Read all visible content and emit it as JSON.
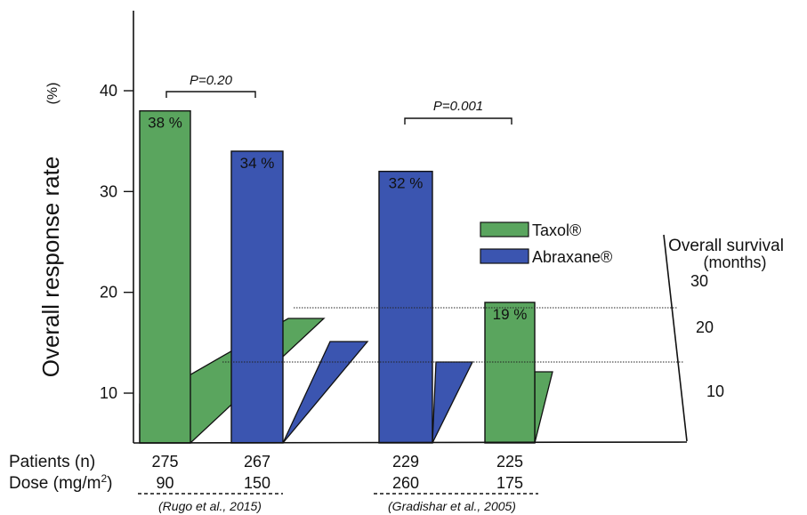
{
  "chart_data": {
    "type": "bar",
    "ylabel": "Overall  response  rate",
    "ylabel_unit": "(%)",
    "y_ticks": [
      "10",
      "20",
      "30",
      "40"
    ],
    "secondary_axis": {
      "label_line1": "Overall survival",
      "label_line2": "(months)",
      "ticks": [
        "10",
        "20",
        "30"
      ]
    },
    "legend": [
      {
        "name": "Taxol®",
        "color": "#5aa55e"
      },
      {
        "name": "Abraxane®",
        "color": "#3b55b0"
      }
    ],
    "series": [
      {
        "name": "Taxol®",
        "color": "#5aa55e"
      },
      {
        "name": "Abraxane®",
        "color": "#3b55b0"
      }
    ],
    "bars": [
      {
        "series": "Taxol®",
        "response_rate": 38,
        "label": "38 %",
        "patients": "275",
        "dose": "90",
        "survival_months": 13
      },
      {
        "series": "Abraxane®",
        "response_rate": 34,
        "label": "34 %",
        "patients": "267",
        "dose": "150",
        "survival_months": 16
      },
      {
        "series": "Abraxane®",
        "response_rate": 32,
        "label": "32 %",
        "patients": "229",
        "dose": "260",
        "survival_months": 14
      },
      {
        "series": "Taxol®",
        "response_rate": 19,
        "label": "19 %",
        "patients": "225",
        "dose": "175",
        "survival_months": 14
      }
    ],
    "comparisons": [
      {
        "label": "P=0.20",
        "reference": "(Rugo et al., 2015)"
      },
      {
        "label": "P=0.001",
        "reference": "(Gradishar et al., 2005)"
      }
    ],
    "row_labels": {
      "patients": "Patients (n)",
      "dose": "Dose (mg/m",
      "dose_sup": "2",
      "dose_close": ")"
    }
  }
}
